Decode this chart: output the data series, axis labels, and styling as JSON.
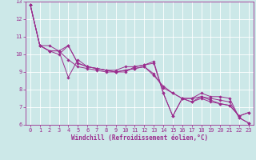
{
  "xlabel": "Windchill (Refroidissement éolien,°C)",
  "background_color": "#cce8e8",
  "grid_color": "#ffffff",
  "line_color": "#9b2d8e",
  "xlim": [
    -0.5,
    23.5
  ],
  "ylim": [
    6,
    13
  ],
  "xticks": [
    0,
    1,
    2,
    3,
    4,
    5,
    6,
    7,
    8,
    9,
    10,
    11,
    12,
    13,
    14,
    15,
    16,
    17,
    18,
    19,
    20,
    21,
    22,
    23
  ],
  "yticks": [
    6,
    7,
    8,
    9,
    10,
    11,
    12,
    13
  ],
  "lines": [
    [
      12.8,
      10.5,
      10.5,
      10.2,
      10.5,
      9.5,
      9.3,
      9.2,
      9.1,
      9.1,
      9.3,
      9.3,
      9.4,
      9.6,
      7.8,
      6.5,
      7.5,
      7.3,
      7.6,
      7.5,
      7.4,
      7.3,
      6.4,
      6.1
    ],
    [
      12.8,
      10.5,
      10.2,
      10.2,
      9.7,
      9.3,
      9.2,
      9.1,
      9.0,
      9.0,
      9.1,
      9.2,
      9.3,
      8.8,
      8.2,
      7.8,
      7.5,
      7.3,
      7.5,
      7.3,
      7.2,
      7.1,
      6.5,
      6.7
    ],
    [
      12.8,
      10.5,
      10.2,
      10.0,
      10.5,
      9.5,
      9.3,
      9.2,
      9.1,
      9.0,
      9.0,
      9.3,
      9.4,
      9.5,
      7.8,
      6.5,
      7.5,
      7.5,
      7.8,
      7.6,
      7.6,
      7.5,
      6.4,
      6.1
    ],
    [
      12.8,
      10.5,
      10.2,
      10.2,
      8.7,
      9.7,
      9.3,
      9.2,
      9.1,
      9.0,
      9.1,
      9.2,
      9.3,
      8.9,
      8.1,
      7.8,
      7.5,
      7.5,
      7.6,
      7.4,
      7.2,
      7.1,
      6.5,
      6.7
    ]
  ],
  "marker": "D",
  "marker_size": 1.8,
  "linewidth": 0.7,
  "tick_fontsize": 5,
  "xlabel_fontsize": 5.5
}
